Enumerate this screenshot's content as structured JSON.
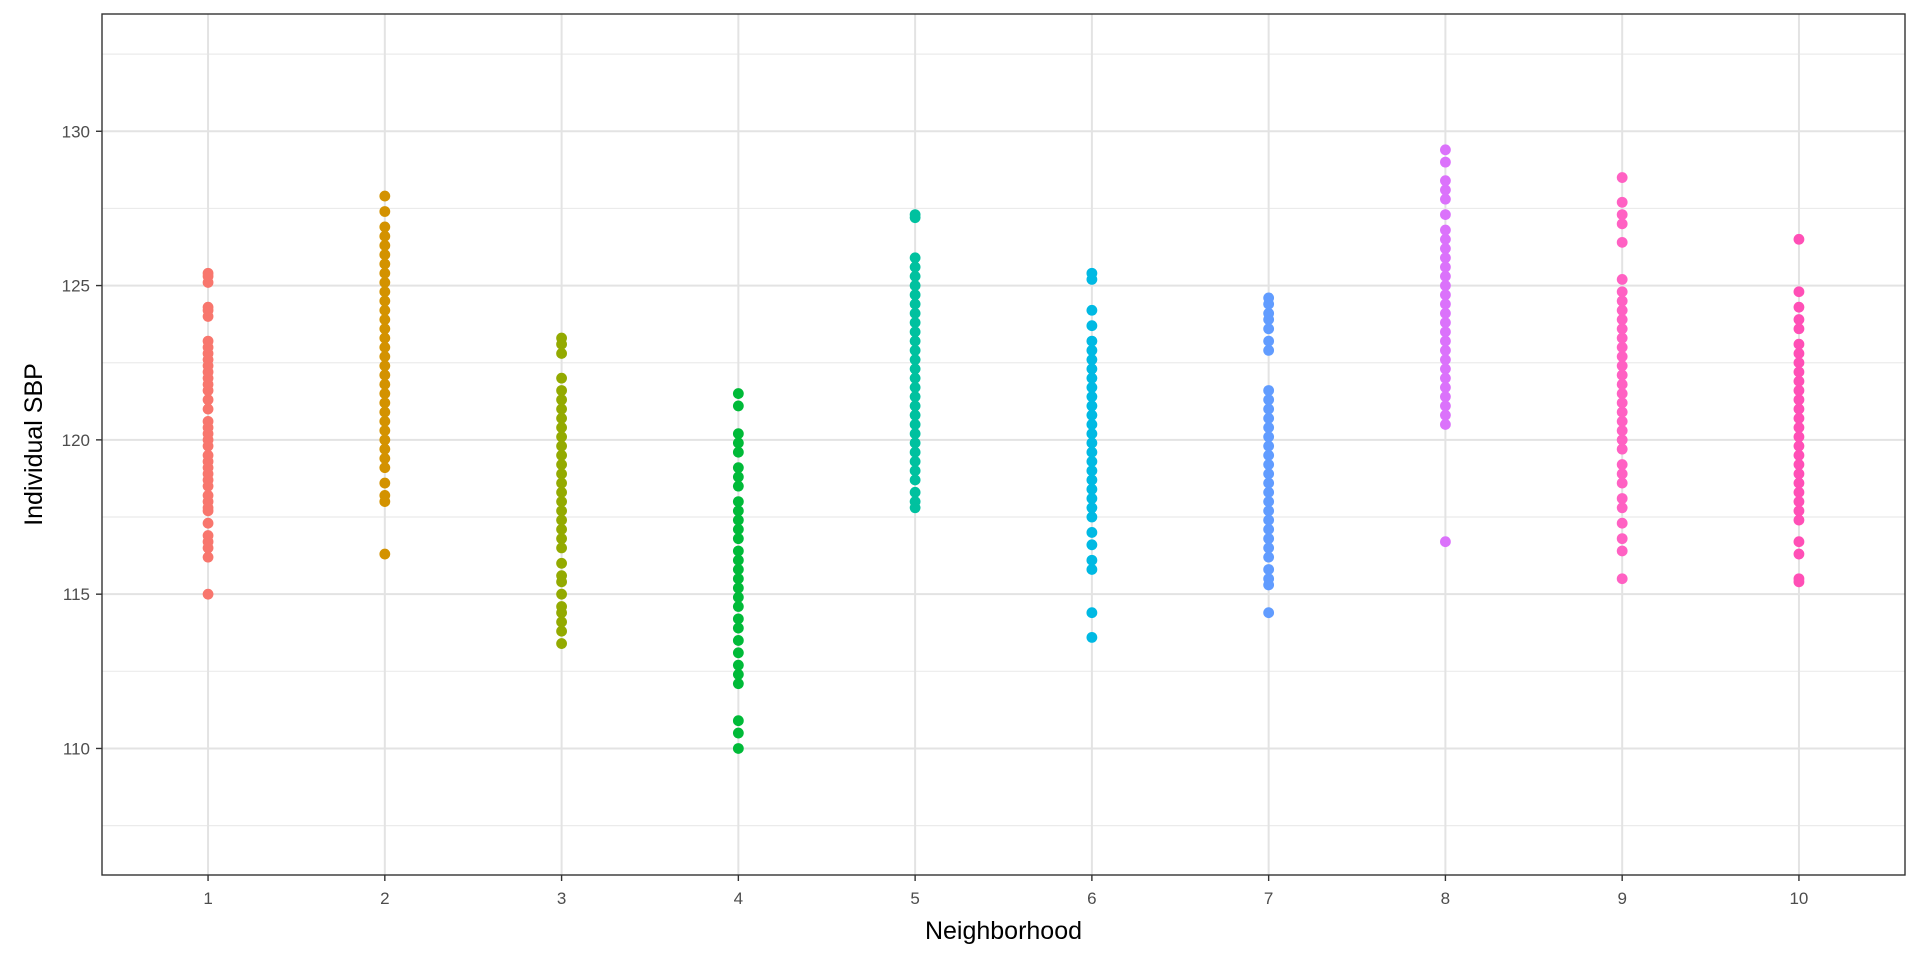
{
  "chart_data": {
    "type": "scatter",
    "title": "",
    "xlabel": "Neighborhood",
    "ylabel": "Individual SBP",
    "x_ticks": [
      "1",
      "2",
      "3",
      "4",
      "5",
      "6",
      "7",
      "8",
      "9",
      "10"
    ],
    "y_ticks": [
      110,
      115,
      120,
      125,
      130
    ],
    "xlim": [
      0.4,
      10.6
    ],
    "ylim": [
      105.9,
      133.8
    ],
    "grid": true,
    "legend": "none",
    "series": [
      {
        "x": 1,
        "color": "#F8766D",
        "values": [
          115.0,
          116.2,
          116.5,
          116.7,
          116.9,
          117.3,
          117.7,
          117.8,
          118.0,
          118.2,
          118.5,
          118.7,
          118.9,
          119.1,
          119.3,
          119.5,
          119.8,
          120.0,
          120.2,
          120.4,
          120.6,
          121.0,
          121.3,
          121.6,
          121.8,
          122.0,
          122.2,
          122.4,
          122.6,
          122.8,
          123.0,
          123.2,
          124.0,
          124.2,
          124.3,
          125.1,
          125.3,
          125.4
        ]
      },
      {
        "x": 2,
        "color": "#D39200",
        "values": [
          116.3,
          118.0,
          118.2,
          118.6,
          119.1,
          119.4,
          119.7,
          120.0,
          120.3,
          120.6,
          120.9,
          121.2,
          121.5,
          121.8,
          122.1,
          122.4,
          122.7,
          123.0,
          123.3,
          123.6,
          123.9,
          124.2,
          124.5,
          124.8,
          125.1,
          125.4,
          125.7,
          126.0,
          126.3,
          126.6,
          126.9,
          127.4,
          127.9
        ]
      },
      {
        "x": 3,
        "color": "#93AA00",
        "values": [
          113.4,
          113.8,
          114.1,
          114.4,
          114.6,
          115.0,
          115.4,
          115.6,
          116.0,
          116.5,
          116.8,
          117.1,
          117.4,
          117.7,
          118.0,
          118.3,
          118.6,
          118.9,
          119.2,
          119.5,
          119.8,
          120.1,
          120.4,
          120.7,
          121.0,
          121.3,
          121.6,
          122.0,
          122.8,
          123.1,
          123.3
        ]
      },
      {
        "x": 4,
        "color": "#00BA38",
        "values": [
          110.0,
          110.5,
          110.9,
          112.1,
          112.4,
          112.7,
          113.1,
          113.5,
          113.9,
          114.2,
          114.6,
          114.9,
          115.2,
          115.5,
          115.8,
          116.1,
          116.4,
          116.8,
          117.1,
          117.4,
          117.7,
          118.0,
          118.5,
          118.8,
          119.1,
          119.6,
          119.9,
          120.2,
          121.1,
          121.5
        ]
      },
      {
        "x": 5,
        "color": "#00C19F",
        "values": [
          117.8,
          118.0,
          118.3,
          118.7,
          119.0,
          119.3,
          119.6,
          119.9,
          120.2,
          120.5,
          120.8,
          121.1,
          121.4,
          121.7,
          122.0,
          122.3,
          122.6,
          122.9,
          123.2,
          123.5,
          123.8,
          124.1,
          124.4,
          124.7,
          125.0,
          125.3,
          125.6,
          125.9,
          127.2,
          127.3
        ]
      },
      {
        "x": 6,
        "color": "#00B9E3",
        "values": [
          113.6,
          114.4,
          115.8,
          116.1,
          116.6,
          117.0,
          117.5,
          117.8,
          118.1,
          118.4,
          118.7,
          119.0,
          119.3,
          119.6,
          119.9,
          120.2,
          120.5,
          120.8,
          121.1,
          121.4,
          121.7,
          122.0,
          122.3,
          122.6,
          122.9,
          123.2,
          123.7,
          124.2,
          125.2,
          125.4
        ]
      },
      {
        "x": 7,
        "color": "#619CFF",
        "values": [
          114.4,
          115.3,
          115.5,
          115.8,
          116.2,
          116.5,
          116.8,
          117.1,
          117.4,
          117.7,
          118.0,
          118.3,
          118.6,
          118.9,
          119.2,
          119.5,
          119.8,
          120.1,
          120.4,
          120.7,
          121.0,
          121.3,
          121.6,
          122.9,
          123.2,
          123.6,
          123.9,
          124.1,
          124.4,
          124.6
        ]
      },
      {
        "x": 8,
        "color": "#DB72FB",
        "values": [
          116.7,
          120.5,
          120.8,
          121.1,
          121.4,
          121.7,
          122.0,
          122.3,
          122.6,
          122.9,
          123.2,
          123.5,
          123.8,
          124.1,
          124.4,
          124.7,
          125.0,
          125.3,
          125.6,
          125.9,
          126.2,
          126.5,
          126.8,
          127.3,
          127.8,
          128.1,
          128.4,
          129.0,
          129.4
        ]
      },
      {
        "x": 9,
        "color": "#FF61C3",
        "values": [
          115.5,
          116.4,
          116.8,
          117.3,
          117.8,
          118.1,
          118.6,
          118.9,
          119.2,
          119.7,
          120.0,
          120.3,
          120.6,
          120.9,
          121.2,
          121.5,
          121.8,
          122.1,
          122.4,
          122.7,
          123.0,
          123.3,
          123.6,
          123.9,
          124.2,
          124.5,
          124.8,
          125.2,
          126.4,
          127.0,
          127.3,
          127.7,
          128.5
        ]
      },
      {
        "x": 10,
        "color": "#FF4FB6",
        "values": [
          115.4,
          115.5,
          116.3,
          116.7,
          117.4,
          117.7,
          118.0,
          118.3,
          118.6,
          118.9,
          119.2,
          119.5,
          119.8,
          120.1,
          120.4,
          120.7,
          121.0,
          121.3,
          121.6,
          121.9,
          122.2,
          122.5,
          122.8,
          123.1,
          123.6,
          123.9,
          124.3,
          124.8,
          126.5
        ]
      }
    ]
  }
}
